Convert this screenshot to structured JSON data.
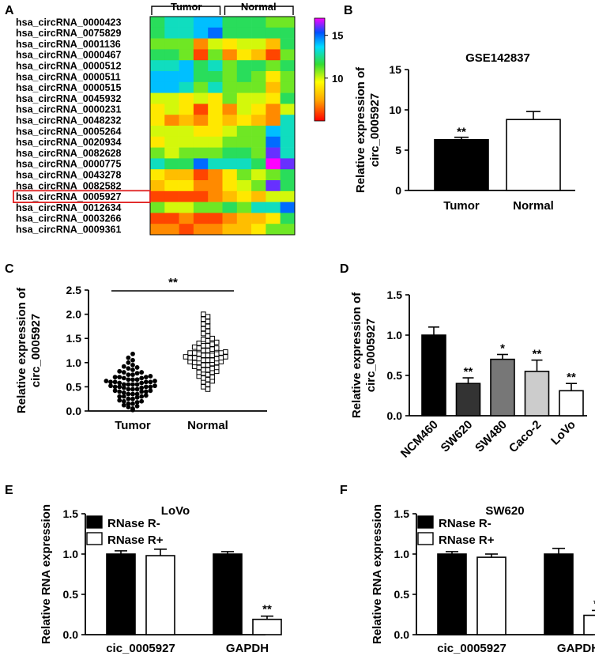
{
  "chart_data": [
    {
      "panel": "A",
      "type": "heatmap",
      "group_labels": [
        "Tumor",
        "Normal"
      ],
      "rows": [
        "hsa_circRNA_0000423",
        "hsa_circRNA_0075829",
        "hsa_circRNA_0001136",
        "hsa_circRNA_0000467",
        "hsa_circRNA_0000512",
        "hsa_circRNA_0000511",
        "hsa_circRNA_0000515",
        "hsa_circRNA_0045932",
        "hsa_circRNA_0000231",
        "hsa_circRNA_0048232",
        "hsa_circRNA_0005264",
        "hsa_circRNA_0020934",
        "hsa_circRNA_0082628",
        "hsa_circRNA_0000775",
        "hsa_circRNA_0043278",
        "hsa_circRNA_0082582",
        "hsa_circRNA_0005927",
        "hsa_circRNA_0012634",
        "hsa_circRNA_0003266",
        "hsa_circRNA_0009361"
      ],
      "highlighted_row": "hsa_circRNA_0005927",
      "scale_ticks": [
        "15",
        "10"
      ],
      "scale_range": [
        5,
        17
      ],
      "values": [
        [
          12,
          13,
          13,
          14,
          14,
          12,
          12,
          12,
          11,
          11
        ],
        [
          12,
          13,
          13,
          14,
          15,
          12,
          12,
          12,
          12,
          12
        ],
        [
          11,
          11,
          11,
          7,
          10,
          9,
          10,
          10,
          8,
          12
        ],
        [
          12,
          12,
          11,
          6,
          11,
          7,
          9,
          8,
          6,
          11
        ],
        [
          13,
          13,
          14,
          12,
          13,
          11,
          12,
          12,
          11,
          12
        ],
        [
          14,
          14,
          14,
          12,
          12,
          11,
          12,
          11,
          9,
          11
        ],
        [
          14,
          14,
          13,
          11,
          13,
          11,
          11,
          11,
          8,
          11
        ],
        [
          10,
          10,
          9,
          10,
          9,
          11,
          10,
          10,
          9,
          12
        ],
        [
          9,
          10,
          9,
          6,
          9,
          7,
          10,
          9,
          7,
          10
        ],
        [
          9,
          7,
          8,
          7,
          9,
          8,
          9,
          8,
          7,
          13
        ],
        [
          10,
          10,
          10,
          9,
          9,
          10,
          11,
          11,
          14,
          13
        ],
        [
          9,
          10,
          10,
          10,
          10,
          11,
          11,
          11,
          15,
          13
        ],
        [
          11,
          10,
          11,
          11,
          11,
          12,
          12,
          11,
          16,
          13
        ],
        [
          13,
          12,
          12,
          15,
          13,
          13,
          13,
          12,
          17,
          16
        ],
        [
          9,
          8,
          8,
          6,
          7,
          9,
          11,
          10,
          11,
          12
        ],
        [
          8,
          9,
          9,
          7,
          7,
          9,
          10,
          11,
          16,
          12
        ],
        [
          6,
          6,
          6,
          6,
          7,
          8,
          9,
          8,
          10,
          10
        ],
        [
          11,
          10,
          10,
          11,
          11,
          12,
          11,
          13,
          13,
          15
        ],
        [
          6,
          6,
          7,
          6,
          6,
          7,
          8,
          8,
          9,
          12
        ],
        [
          7,
          7,
          6,
          7,
          7,
          8,
          8,
          9,
          11,
          11
        ]
      ]
    },
    {
      "panel": "B",
      "type": "bar",
      "title": "GSE142837",
      "ylabel": [
        "Relative expression of",
        "circ_0005927"
      ],
      "categories": [
        "Tumor",
        "Normal"
      ],
      "values": [
        6.3,
        8.8
      ],
      "errors": [
        0.3,
        1.0
      ],
      "fills": [
        "#000000",
        "#ffffff"
      ],
      "significance": [
        "**",
        ""
      ],
      "ylim": [
        0,
        15
      ],
      "yticks": [
        "0",
        "5",
        "10",
        "15"
      ]
    },
    {
      "panel": "C",
      "type": "scatter",
      "ylabel": [
        "Relative expression of",
        "circ_0005927"
      ],
      "categories": [
        "Tumor",
        "Normal"
      ],
      "significance": "**",
      "ylim": [
        0,
        2.5
      ],
      "yticks": [
        "0.0",
        "0.5",
        "1.0",
        "1.5",
        "2.0",
        "2.5"
      ],
      "tumor_values": [
        0.02,
        0.05,
        0.08,
        0.1,
        0.12,
        0.15,
        0.15,
        0.18,
        0.2,
        0.2,
        0.22,
        0.25,
        0.25,
        0.28,
        0.3,
        0.3,
        0.3,
        0.32,
        0.35,
        0.35,
        0.35,
        0.38,
        0.4,
        0.4,
        0.4,
        0.42,
        0.42,
        0.45,
        0.45,
        0.45,
        0.48,
        0.48,
        0.5,
        0.5,
        0.5,
        0.5,
        0.52,
        0.52,
        0.55,
        0.55,
        0.55,
        0.55,
        0.58,
        0.58,
        0.6,
        0.6,
        0.6,
        0.6,
        0.62,
        0.62,
        0.65,
        0.65,
        0.65,
        0.68,
        0.68,
        0.7,
        0.7,
        0.7,
        0.72,
        0.75,
        0.75,
        0.78,
        0.8,
        0.8,
        0.82,
        0.85,
        0.88,
        0.9,
        0.92,
        0.95,
        1.0,
        1.05,
        1.1,
        1.18
      ],
      "normal_values": [
        0.45,
        0.5,
        0.55,
        0.6,
        0.62,
        0.65,
        0.68,
        0.7,
        0.72,
        0.75,
        0.78,
        0.8,
        0.8,
        0.82,
        0.85,
        0.85,
        0.88,
        0.9,
        0.9,
        0.92,
        0.95,
        0.95,
        0.98,
        1.0,
        1.0,
        1.0,
        1.02,
        1.02,
        1.05,
        1.05,
        1.05,
        1.08,
        1.08,
        1.1,
        1.1,
        1.1,
        1.12,
        1.12,
        1.15,
        1.15,
        1.15,
        1.18,
        1.18,
        1.2,
        1.2,
        1.2,
        1.22,
        1.25,
        1.25,
        1.28,
        1.3,
        1.3,
        1.32,
        1.35,
        1.35,
        1.38,
        1.4,
        1.42,
        1.45,
        1.48,
        1.5,
        1.55,
        1.6,
        1.65,
        1.7,
        1.75,
        1.8,
        1.85,
        1.9,
        1.95,
        2.0
      ]
    },
    {
      "panel": "D",
      "type": "bar",
      "ylabel": [
        "Relative expression of",
        "circ_0005927"
      ],
      "categories": [
        "NCM460",
        "SW620",
        "SW480",
        "Caco-2",
        "LoVo"
      ],
      "values": [
        1.0,
        0.4,
        0.7,
        0.55,
        0.31
      ],
      "errors": [
        0.1,
        0.07,
        0.06,
        0.14,
        0.09
      ],
      "fills": [
        "#000000",
        "#333333",
        "#777777",
        "#cccccc",
        "#ffffff"
      ],
      "significance": [
        "",
        "**",
        "*",
        "**",
        "**"
      ],
      "ylim": [
        0,
        1.5
      ],
      "yticks": [
        "0.0",
        "0.5",
        "1.0",
        "1.5"
      ]
    },
    {
      "panel": "E",
      "type": "bar",
      "title": "LoVo",
      "ylabel": [
        "Relative RNA expression"
      ],
      "categories": [
        "cic_0005927",
        "GAPDH"
      ],
      "series": [
        {
          "name": "RNase R-",
          "fill": "#000000",
          "values": [
            1.0,
            1.0
          ],
          "errors": [
            0.04,
            0.03
          ]
        },
        {
          "name": "RNase R+",
          "fill": "#ffffff",
          "values": [
            0.98,
            0.19
          ],
          "errors": [
            0.08,
            0.04
          ]
        }
      ],
      "significance": [
        "",
        "",
        "",
        "**"
      ],
      "ylim": [
        0,
        1.5
      ],
      "yticks": [
        "0.0",
        "0.5",
        "1.0",
        "1.5"
      ]
    },
    {
      "panel": "F",
      "type": "bar",
      "title": "SW620",
      "ylabel": [
        "Relative RNA expression"
      ],
      "categories": [
        "cic_0005927",
        "GAPDH"
      ],
      "series": [
        {
          "name": "RNase R-",
          "fill": "#000000",
          "values": [
            1.0,
            1.0
          ],
          "errors": [
            0.03,
            0.07
          ]
        },
        {
          "name": "RNase R+",
          "fill": "#ffffff",
          "values": [
            0.96,
            0.24
          ],
          "errors": [
            0.04,
            0.06
          ]
        }
      ],
      "significance": [
        "",
        "",
        "",
        "**"
      ],
      "ylim": [
        0,
        1.5
      ],
      "yticks": [
        "0.0",
        "0.5",
        "1.0",
        "1.5"
      ]
    }
  ]
}
